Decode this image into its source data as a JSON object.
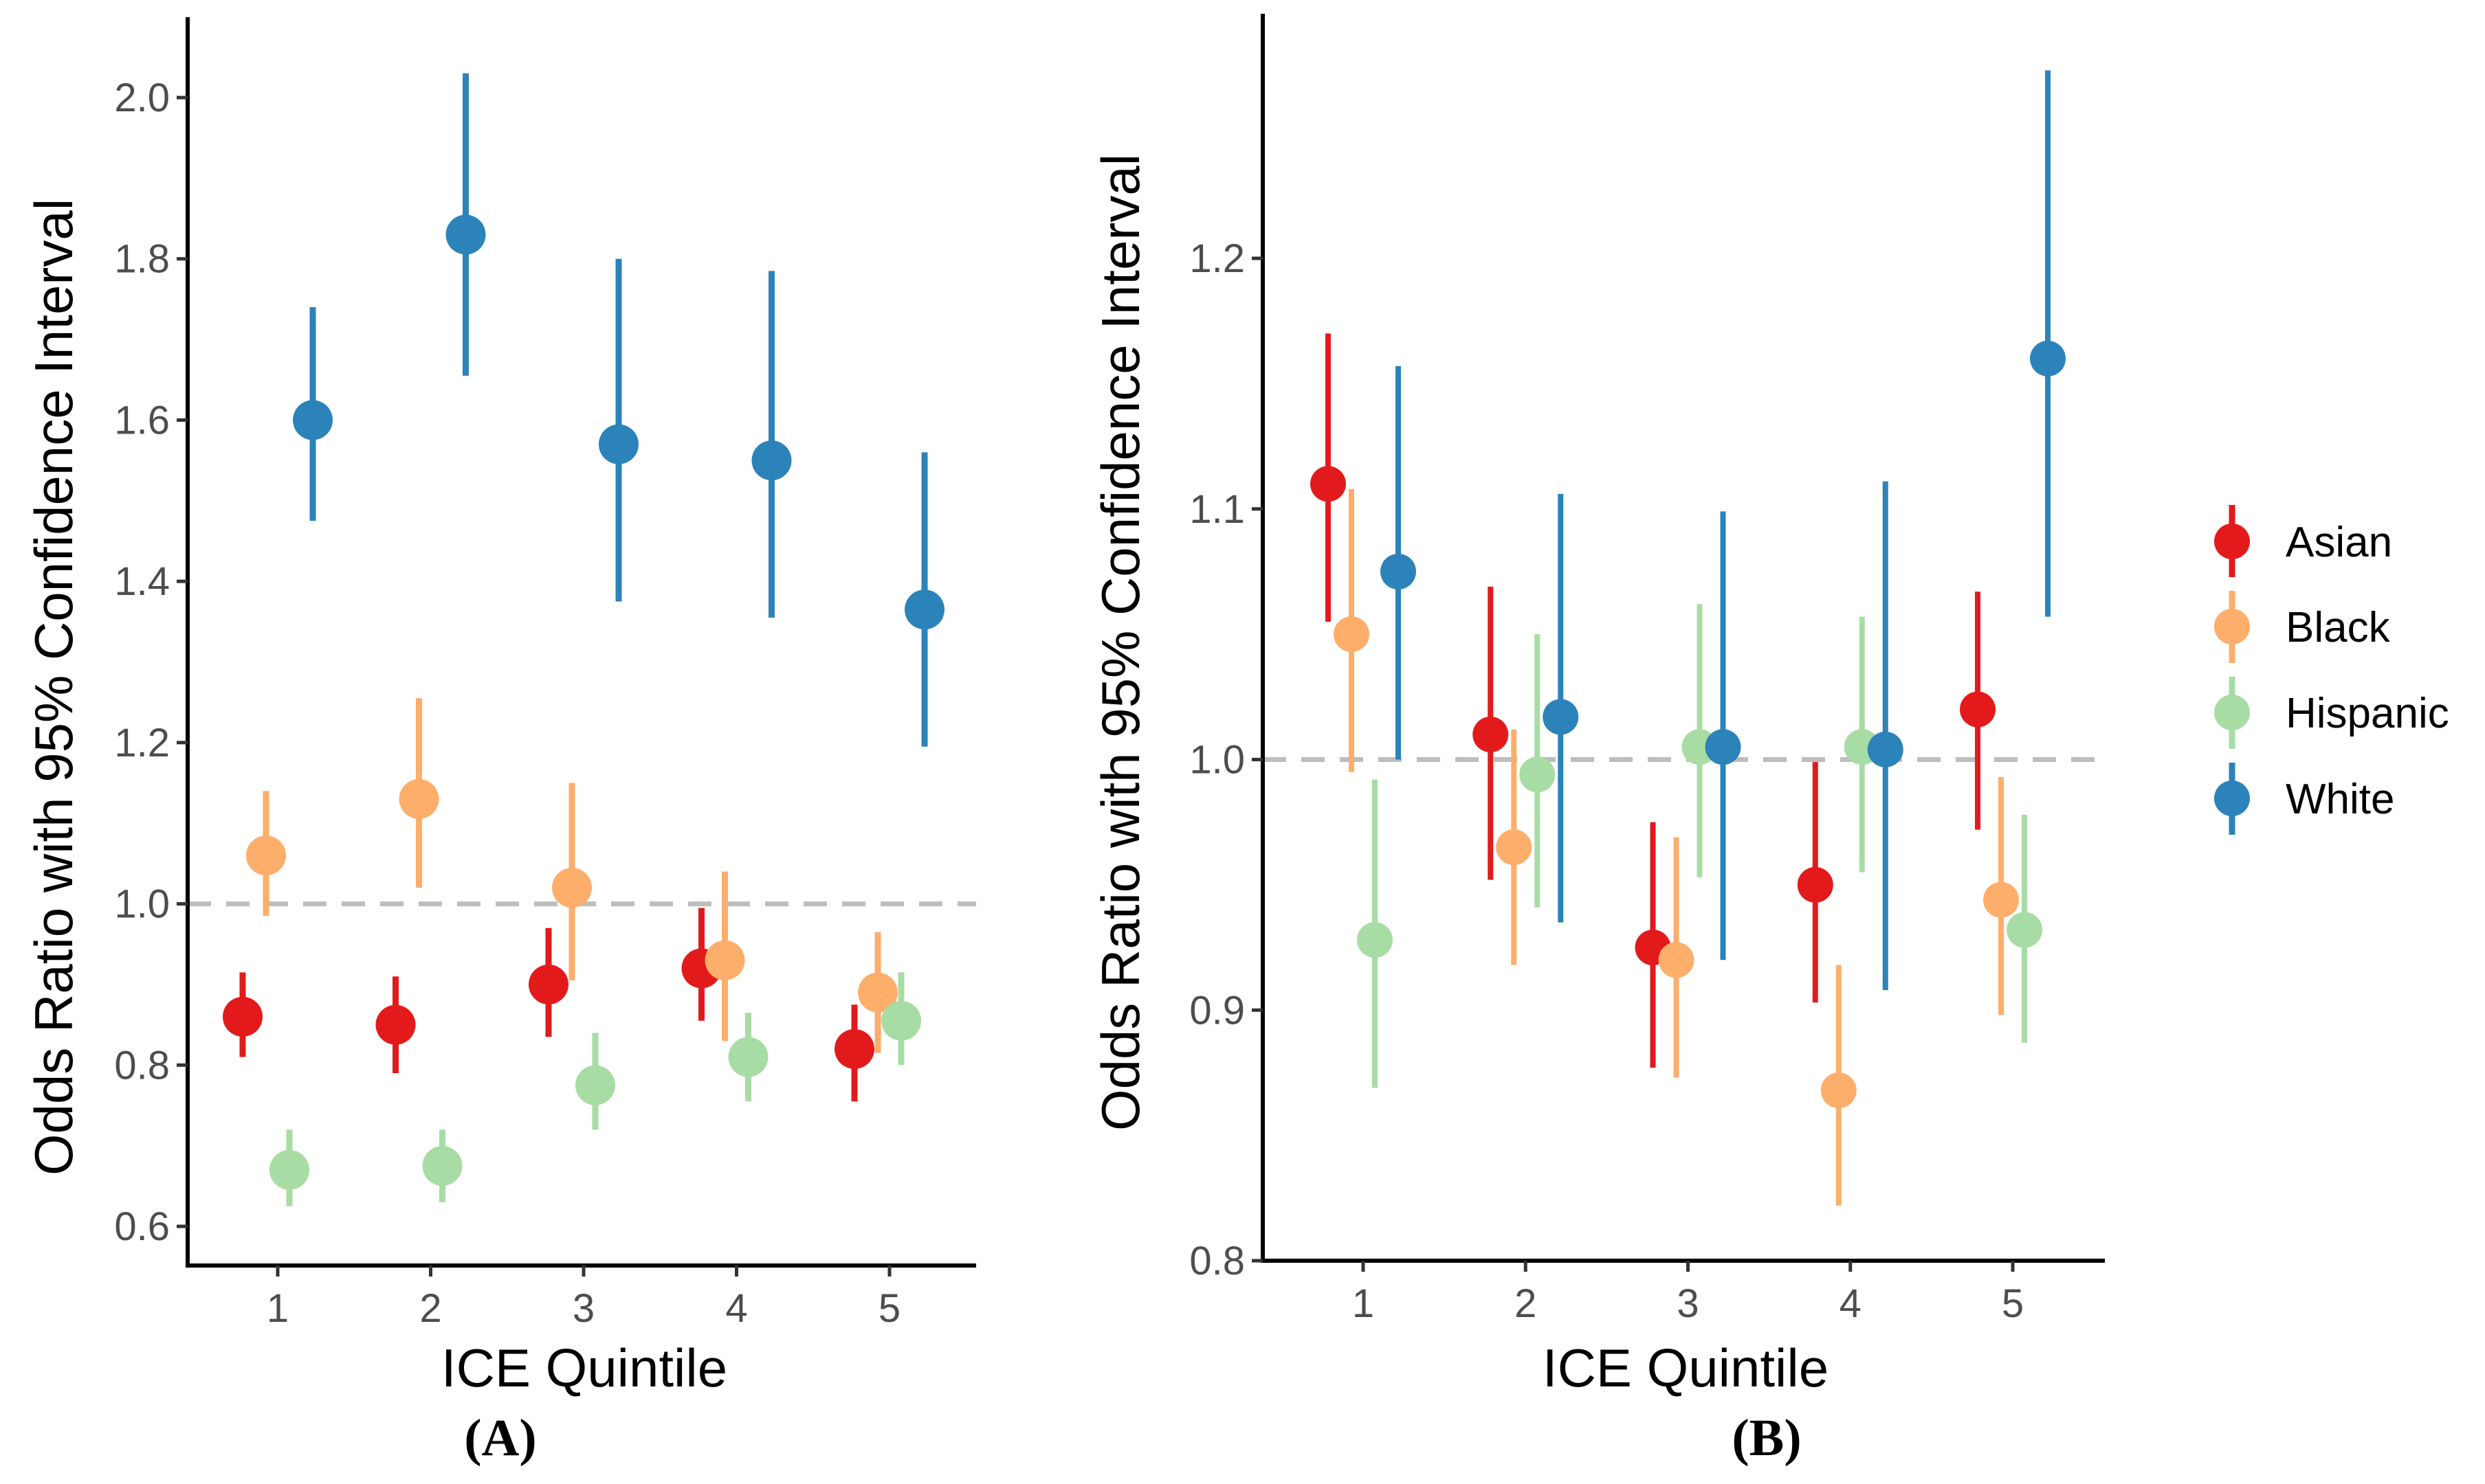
{
  "colors": {
    "Asian": "#e31a1c",
    "Black": "#fdae6b",
    "Hispanic": "#a8dca5",
    "White": "#2b83ba",
    "reference_line": "#bdbdbd",
    "axis": "#000000"
  },
  "legend": {
    "items": [
      "Asian",
      "Black",
      "Hispanic",
      "White"
    ]
  },
  "chart_data": [
    {
      "panel": "(A)",
      "type": "scatter",
      "xlabel": "ICE Quintile",
      "ylabel": "Odds Ratio with 95% Confidence Interval",
      "xlim": [
        0.4,
        5.6
      ],
      "ylim": [
        0.55,
        2.1
      ],
      "x_ticks": [
        1,
        2,
        3,
        4,
        5
      ],
      "y_ticks": [
        0.6,
        0.8,
        1.0,
        1.2,
        1.4,
        1.6,
        1.8,
        2.0
      ],
      "y_tick_labels": [
        "0.6",
        "0.8",
        "1.0",
        "1.2",
        "1.4",
        "1.6",
        "1.8",
        "2.0"
      ],
      "reference_y": 1.0,
      "series": [
        {
          "name": "Asian",
          "x": [
            1,
            2,
            3,
            4,
            5
          ],
          "or": [
            0.86,
            0.85,
            0.9,
            0.92,
            0.82
          ],
          "lower": [
            0.81,
            0.79,
            0.835,
            0.855,
            0.755
          ],
          "upper": [
            0.915,
            0.91,
            0.97,
            0.995,
            0.875
          ]
        },
        {
          "name": "Black",
          "x": [
            1,
            2,
            3,
            4,
            5
          ],
          "or": [
            1.06,
            1.13,
            1.02,
            0.93,
            0.89
          ],
          "lower": [
            0.985,
            1.02,
            0.905,
            0.83,
            0.815
          ],
          "upper": [
            1.14,
            1.255,
            1.15,
            1.04,
            0.965
          ]
        },
        {
          "name": "Hispanic",
          "x": [
            1,
            2,
            3,
            4,
            5
          ],
          "or": [
            0.67,
            0.675,
            0.775,
            0.81,
            0.855
          ],
          "lower": [
            0.625,
            0.63,
            0.72,
            0.755,
            0.8
          ],
          "upper": [
            0.72,
            0.72,
            0.84,
            0.865,
            0.915
          ]
        },
        {
          "name": "White",
          "x": [
            1,
            2,
            3,
            4,
            5
          ],
          "or": [
            1.6,
            1.83,
            1.57,
            1.55,
            1.365
          ],
          "lower": [
            1.475,
            1.655,
            1.375,
            1.355,
            1.195
          ],
          "upper": [
            1.74,
            2.03,
            1.8,
            1.785,
            1.56
          ]
        }
      ]
    },
    {
      "panel": "(B)",
      "type": "scatter",
      "xlabel": "ICE Quintile",
      "ylabel": "Odds Ratio with 95% Confidence Interval",
      "xlim": [
        0.4,
        5.6
      ],
      "ylim": [
        0.8,
        1.28
      ],
      "x_ticks": [
        1,
        2,
        3,
        4,
        5
      ],
      "y_ticks": [
        0.8,
        0.9,
        1.0,
        1.1,
        1.2
      ],
      "y_tick_labels": [
        "0.8",
        "0.9",
        "1.0",
        "1.1",
        "1.2"
      ],
      "reference_y": 1.0,
      "series": [
        {
          "name": "Asian",
          "x": [
            1,
            2,
            3,
            4,
            5
          ],
          "or": [
            1.11,
            1.01,
            0.925,
            0.95,
            1.02
          ],
          "lower": [
            1.055,
            0.952,
            0.877,
            0.903,
            0.972
          ],
          "upper": [
            1.17,
            1.069,
            0.975,
            0.999,
            1.067
          ]
        },
        {
          "name": "Black",
          "x": [
            1,
            2,
            3,
            4,
            5
          ],
          "or": [
            1.05,
            0.965,
            0.92,
            0.868,
            0.944
          ],
          "lower": [
            0.995,
            0.918,
            0.873,
            0.822,
            0.898
          ],
          "upper": [
            1.108,
            1.012,
            0.969,
            0.918,
            0.993
          ]
        },
        {
          "name": "Hispanic",
          "x": [
            1,
            2,
            3,
            4,
            5
          ],
          "or": [
            0.928,
            0.994,
            1.005,
            1.005,
            0.932
          ],
          "lower": [
            0.869,
            0.941,
            0.953,
            0.955,
            0.887
          ],
          "upper": [
            0.992,
            1.05,
            1.062,
            1.057,
            0.978
          ]
        },
        {
          "name": "White",
          "x": [
            1,
            2,
            3,
            4,
            5
          ],
          "or": [
            1.075,
            1.017,
            1.005,
            1.004,
            1.16
          ],
          "lower": [
            1.0,
            0.935,
            0.92,
            0.908,
            1.057
          ],
          "upper": [
            1.157,
            1.106,
            1.099,
            1.111,
            1.275
          ]
        }
      ]
    }
  ]
}
